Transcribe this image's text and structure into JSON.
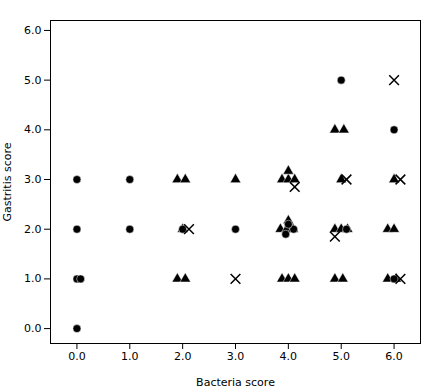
{
  "chart_data": {
    "type": "scatter",
    "xlabel": "Bacteria score",
    "ylabel": "Gastritis score",
    "xlim": [
      -0.5,
      6.5
    ],
    "ylim": [
      -0.3,
      6.2
    ],
    "xticks": [
      0,
      1,
      2,
      3,
      4,
      5,
      6
    ],
    "yticks": [
      0,
      1,
      2,
      3,
      4,
      5,
      6
    ],
    "grid": false,
    "color": "black",
    "series": [
      {
        "marker": "triangle",
        "values": [
          [
            1.9,
            1
          ],
          [
            2.05,
            1
          ],
          [
            1.9,
            3
          ],
          [
            2.05,
            3
          ],
          [
            2,
            2
          ],
          [
            3,
            3
          ],
          [
            3.88,
            1
          ],
          [
            4.0,
            1
          ],
          [
            4.12,
            1
          ],
          [
            3.85,
            2
          ],
          [
            3.97,
            2
          ],
          [
            4.09,
            2
          ],
          [
            4.0,
            2.17
          ],
          [
            3.88,
            3
          ],
          [
            4.0,
            3
          ],
          [
            4.12,
            3
          ],
          [
            4.0,
            3.17
          ],
          [
            4.88,
            1
          ],
          [
            5.03,
            1
          ],
          [
            4.88,
            2
          ],
          [
            5.0,
            2
          ],
          [
            5.12,
            2
          ],
          [
            5,
            3
          ],
          [
            4.88,
            4
          ],
          [
            5.05,
            4
          ],
          [
            5.88,
            1
          ],
          [
            6.04,
            1
          ],
          [
            5.88,
            2
          ],
          [
            6.0,
            2
          ],
          [
            6,
            3
          ]
        ]
      },
      {
        "marker": "circle",
        "values": [
          [
            0,
            0
          ],
          [
            0,
            1
          ],
          [
            0.07,
            1
          ],
          [
            0,
            2
          ],
          [
            0,
            3
          ],
          [
            1,
            2
          ],
          [
            1,
            3
          ],
          [
            2,
            2
          ],
          [
            3,
            2
          ],
          [
            4.1,
            2
          ],
          [
            3.95,
            1.9
          ],
          [
            4.0,
            2.1
          ],
          [
            5.1,
            2
          ],
          [
            5,
            5
          ],
          [
            6,
            1
          ],
          [
            6,
            4
          ]
        ]
      },
      {
        "marker": "x",
        "values": [
          [
            2.12,
            2
          ],
          [
            3,
            1
          ],
          [
            4.12,
            2.85
          ],
          [
            4.88,
            1.85
          ],
          [
            5.1,
            3
          ],
          [
            6.12,
            1
          ],
          [
            6.12,
            3
          ],
          [
            6,
            5
          ]
        ]
      }
    ]
  }
}
